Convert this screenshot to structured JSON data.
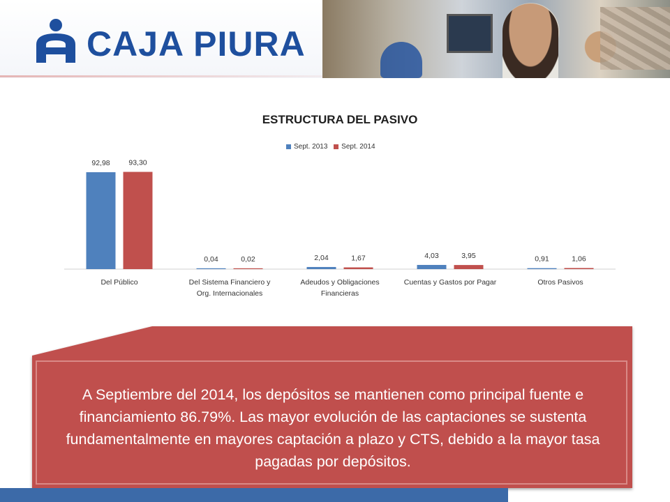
{
  "brand": {
    "name": "CAJA PIURA",
    "color": "#1e4f9e"
  },
  "chart_data": {
    "type": "bar",
    "title": "ESTRUCTURA DEL PASIVO",
    "categories": [
      [
        "Del Público"
      ],
      [
        "Del Sistema Financiero y",
        "Org. Internacionales"
      ],
      [
        "Adeudos y Obligaciones",
        "Financieras"
      ],
      [
        "Cuentas y Gastos por Pagar"
      ],
      [
        "Otros Pasivos"
      ]
    ],
    "series": [
      {
        "name": "Sept. 2013",
        "color": "#4f81bd",
        "values": [
          92.98,
          0.04,
          2.04,
          4.03,
          0.91
        ],
        "labels": [
          "92,98",
          "0,04",
          "2,04",
          "4,03",
          "0,91"
        ]
      },
      {
        "name": "Sept. 2014",
        "color": "#c0504d",
        "values": [
          93.3,
          0.02,
          1.67,
          3.95,
          1.06
        ],
        "labels": [
          "93,30",
          "0,02",
          "1,67",
          "3,95",
          "1,06"
        ]
      }
    ],
    "ylim": [
      0,
      100
    ],
    "grid": false,
    "legend": "top"
  },
  "callout": {
    "text": "A Septiembre del 2014, los depósitos se mantienen como principal fuente e financiamiento 86.79%. Las mayor evolución de las captaciones se sustenta fundamentalmente en mayores captación a plazo y CTS, debido a la mayor tasa pagadas por depósitos.",
    "color": "#c0504d"
  }
}
